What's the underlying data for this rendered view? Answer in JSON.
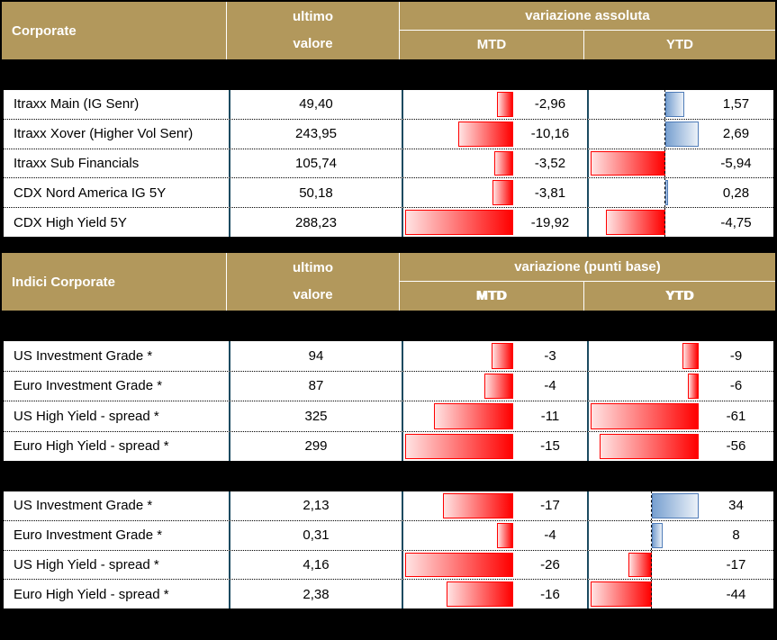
{
  "colors": {
    "background": "#000000",
    "header_bg": "#B2985C",
    "header_text": "#FFFFFF",
    "cell_bg": "#FFFFFF",
    "text": "#000000",
    "grid_line": "#1C4B61",
    "row_divider_dotted": "#000000",
    "negative_bar": "#FF0000",
    "negative_bar_fade": "#FFE3E3",
    "positive_bar_border": "#4F7CB8",
    "positive_bar": "#78A0D0",
    "positive_bar_fade": "#EBF1F8"
  },
  "chart_data": [
    {
      "type": "table",
      "name": "corporate-cds-indices",
      "header": {
        "title": "Corporate",
        "value_col_line1": "ultimo",
        "value_col_line2": "valore",
        "variation_title": "variazione assoluta",
        "mtd": "MTD",
        "ytd": "YTD"
      },
      "columns": {
        "mtd": {
          "axis_min": -19.92,
          "axis_max": 0,
          "show_axis_line": false
        },
        "ytd": {
          "axis_min": -5.94,
          "axis_max": 2.69,
          "show_axis_line": true
        }
      },
      "rows": [
        {
          "label": "Itraxx Main (IG Senr)",
          "value": "49,40",
          "mtd": {
            "text": "-2,96",
            "num": -2.96
          },
          "ytd": {
            "text": "1,57",
            "num": 1.57
          }
        },
        {
          "label": "Itraxx Xover (Higher Vol Senr)",
          "value": "243,95",
          "mtd": {
            "text": "-10,16",
            "num": -10.16
          },
          "ytd": {
            "text": "2,69",
            "num": 2.69
          }
        },
        {
          "label": "Itraxx Sub Financials",
          "value": "105,74",
          "mtd": {
            "text": "-3,52",
            "num": -3.52
          },
          "ytd": {
            "text": "-5,94",
            "num": -5.94
          }
        },
        {
          "label": "CDX Nord America IG 5Y",
          "value": "50,18",
          "mtd": {
            "text": "-3,81",
            "num": -3.81
          },
          "ytd": {
            "text": "0,28",
            "num": 0.28
          }
        },
        {
          "label": "CDX High Yield 5Y",
          "value": "288,23",
          "mtd": {
            "text": "-19,92",
            "num": -19.92
          },
          "ytd": {
            "text": "-4,75",
            "num": -4.75
          }
        }
      ]
    },
    {
      "type": "table",
      "name": "indici-corporate-spread",
      "header": {
        "title": "Indici Corporate",
        "value_col_line1": "ultimo",
        "value_col_line2": "valore",
        "variation_title": "variazione (punti base)",
        "mtd": "MTD",
        "ytd": "YTD"
      },
      "columns": {
        "mtd": {
          "axis_min": -15,
          "axis_max": 0,
          "show_axis_line": false
        },
        "ytd": {
          "axis_min": -61,
          "axis_max": 0,
          "show_axis_line": false
        }
      },
      "rows": [
        {
          "label": "US Investment Grade *",
          "value": "94",
          "mtd": {
            "text": "-3",
            "num": -3
          },
          "ytd": {
            "text": "-9",
            "num": -9
          }
        },
        {
          "label": "Euro Investment Grade *",
          "value": "87",
          "mtd": {
            "text": "-4",
            "num": -4
          },
          "ytd": {
            "text": "-6",
            "num": -6
          }
        },
        {
          "label": "US High Yield - spread *",
          "value": "325",
          "mtd": {
            "text": "-11",
            "num": -11
          },
          "ytd": {
            "text": "-61",
            "num": -61
          }
        },
        {
          "label": "Euro High Yield - spread *",
          "value": "299",
          "mtd": {
            "text": "-15",
            "num": -15
          },
          "ytd": {
            "text": "-56",
            "num": -56
          }
        }
      ]
    },
    {
      "type": "table",
      "name": "indici-corporate-yield",
      "header": null,
      "columns": {
        "mtd": {
          "axis_min": -26,
          "axis_max": 0,
          "show_axis_line": false
        },
        "ytd": {
          "axis_min": -44,
          "axis_max": 34,
          "show_axis_line": true
        }
      },
      "rows": [
        {
          "label": "US Investment Grade *",
          "value": "2,13",
          "mtd": {
            "text": "-17",
            "num": -17
          },
          "ytd": {
            "text": "34",
            "num": 34
          }
        },
        {
          "label": "Euro Investment Grade *",
          "value": "0,31",
          "mtd": {
            "text": "-4",
            "num": -4
          },
          "ytd": {
            "text": "8",
            "num": 8
          }
        },
        {
          "label": "US High Yield - spread *",
          "value": "4,16",
          "mtd": {
            "text": "-26",
            "num": -26
          },
          "ytd": {
            "text": "-17",
            "num": -17
          }
        },
        {
          "label": "Euro High Yield - spread *",
          "value": "2,38",
          "mtd": {
            "text": "-16",
            "num": -16
          },
          "ytd": {
            "text": "-44",
            "num": -44
          }
        }
      ]
    }
  ]
}
